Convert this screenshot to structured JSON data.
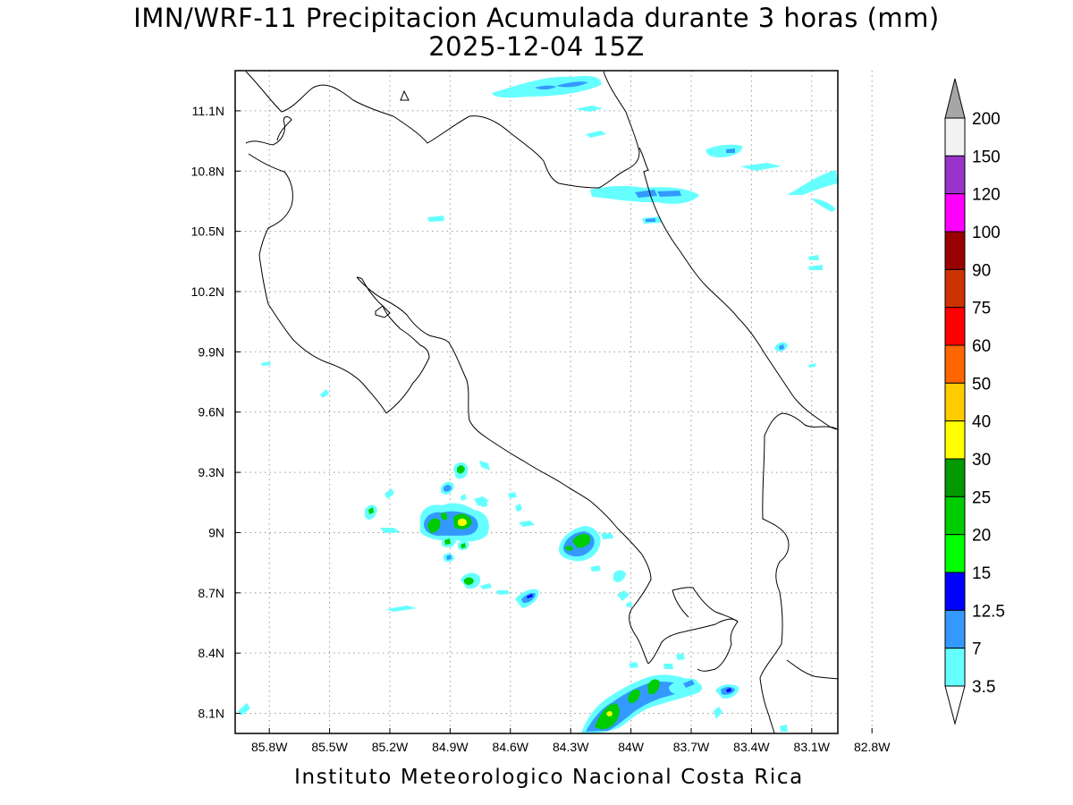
{
  "map": {
    "title": "IMN/WRF-11 Precipitacion Acumulada durante 3 horas (mm)",
    "subtitle": "2025-12-04 15Z",
    "footer": "Instituto Meteorologico Nacional Costa Rica",
    "lat_ticks": [
      "11.1N",
      "10.8N",
      "10.5N",
      "10.2N",
      "9.9N",
      "9.6N",
      "9.3N",
      "9N",
      "8.7N",
      "8.4N",
      "8.1N"
    ],
    "lon_ticks": [
      "85.8W",
      "85.5W",
      "85.2W",
      "84.9W",
      "84.6W",
      "84.3W",
      "84W",
      "83.7W",
      "83.4W",
      "83.1W",
      "82.8W"
    ],
    "lat_range": [
      8.0,
      11.3
    ],
    "lon_range": [
      -85.97,
      -82.97
    ]
  },
  "colorbar": {
    "levels": [
      "200",
      "150",
      "120",
      "100",
      "90",
      "75",
      "60",
      "50",
      "40",
      "30",
      "25",
      "20",
      "15",
      "12.5",
      "7",
      "3.5"
    ],
    "colors": [
      "#f2f2f2",
      "#9933cc",
      "#ff00ff",
      "#990000",
      "#cc3300",
      "#ff0000",
      "#ff6600",
      "#ffcc00",
      "#ffff00",
      "#009900",
      "#00cc00",
      "#00ff00",
      "#0000ff",
      "#3399ff",
      "#66ffff"
    ],
    "above_color": "#a6a6a6"
  }
}
